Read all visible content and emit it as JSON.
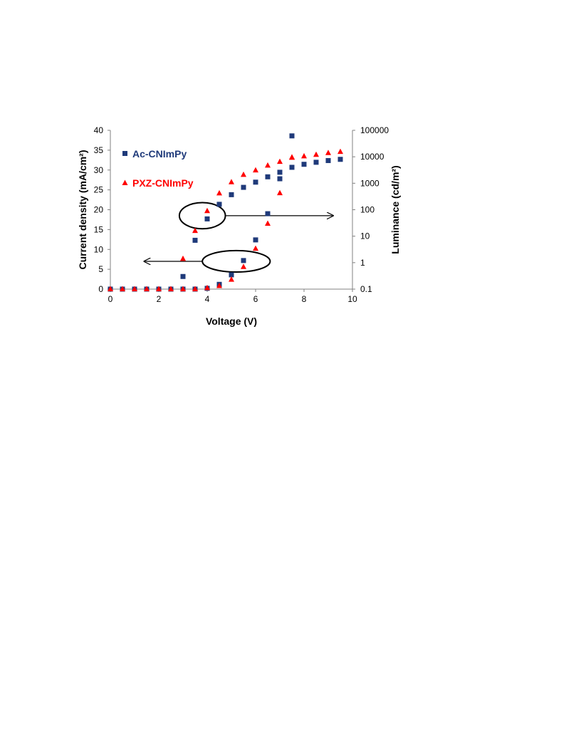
{
  "chart_data": {
    "type": "scatter",
    "xlabel": "Voltage (V)",
    "ylabel_left": "Current density (mA/cm²)",
    "ylabel_right": "Luminance (cd/m²)",
    "xlim": [
      0,
      10
    ],
    "ylim_left": [
      0,
      40
    ],
    "ylim_right": [
      0.1,
      100000
    ],
    "right_axis_scale": "log",
    "grid": false,
    "legend_placement": "top-left",
    "x_ticks": [
      "0",
      "2",
      "4",
      "6",
      "8",
      "10"
    ],
    "y_left_ticks": [
      "0",
      "5",
      "10",
      "15",
      "20",
      "25",
      "30",
      "35",
      "40"
    ],
    "y_right_ticks": [
      "0.1",
      "1",
      "10",
      "100",
      "1000",
      "10000",
      "100000"
    ],
    "series": [
      {
        "name": "Ac-CNImPy",
        "axis": "left",
        "marker": "square",
        "color": "#1f3a7a",
        "x": [
          0,
          0.5,
          1,
          1.5,
          2,
          2.5,
          3,
          3.5,
          4,
          4.5,
          5,
          5.5,
          6,
          6.5,
          7,
          7.5
        ],
        "y": [
          0,
          0,
          0,
          0,
          0,
          0,
          0,
          0,
          0.2,
          1.2,
          3.6,
          7.2,
          12.4,
          19.0,
          27.8,
          38.6
        ]
      },
      {
        "name": "PXZ-CNImPy",
        "axis": "left",
        "marker": "triangle",
        "color": "#ff0000",
        "x": [
          0,
          0.5,
          1,
          1.5,
          2,
          2.5,
          3,
          3.5,
          4,
          4.5,
          5,
          5.5,
          6,
          6.5,
          7,
          7.5
        ],
        "y": [
          0,
          0,
          0,
          0,
          0,
          0,
          0,
          0,
          0.3,
          0.8,
          2.4,
          5.6,
          10.2,
          16.5,
          24.2,
          33.2
        ]
      },
      {
        "name": "Ac-CNImPy",
        "axis": "right",
        "marker": "square",
        "color": "#1f3a7a",
        "x": [
          3,
          3.5,
          4,
          4.5,
          5,
          5.5,
          6,
          6.5,
          7,
          7.5,
          8,
          8.5,
          9,
          9.5
        ],
        "y": [
          0.3,
          7,
          45,
          160,
          370,
          700,
          1100,
          1750,
          2600,
          4000,
          5200,
          6200,
          7200,
          8000
        ]
      },
      {
        "name": "PXZ-CNImPy",
        "axis": "right",
        "marker": "triangle",
        "color": "#ff0000",
        "x": [
          3,
          3.5,
          4,
          4.5,
          5,
          5.5,
          6,
          6.5,
          7,
          7.5,
          8,
          8.5,
          9,
          9.5
        ],
        "y": [
          1.4,
          16,
          90,
          420,
          1100,
          2100,
          3100,
          4700,
          6500,
          9300,
          10500,
          12000,
          14000,
          15500
        ]
      }
    ],
    "annotations": [
      {
        "type": "ellipse",
        "cx": 3.8,
        "cy_left": 18.5,
        "rx": 0.95,
        "ry_left": 3.3,
        "arrow_to_x": 9.2,
        "arrow_direction": "right"
      },
      {
        "type": "ellipse",
        "cx": 5.2,
        "cy_left": 7,
        "rx": 1.4,
        "ry_left": 2.7,
        "arrow_to_x": 1.4,
        "arrow_direction": "left"
      }
    ]
  }
}
